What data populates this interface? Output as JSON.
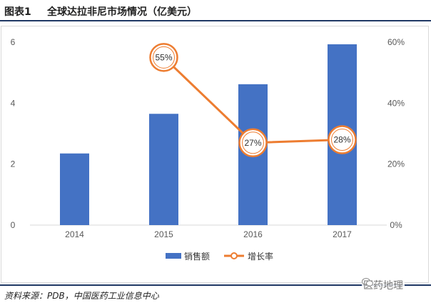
{
  "header": {
    "figure_number": "图表1",
    "title": "全球达拉非尼市场情况（亿美元）"
  },
  "footer": {
    "source": "资料来源：PDB，中国医药工业信息中心"
  },
  "watermark": {
    "text": "医药地理",
    "icon": "wechat-icon"
  },
  "colors": {
    "bar": "#4472c4",
    "line": "#ed7d31",
    "axis_text": "#595959",
    "gridline": "#e6e6e6",
    "header_rule": "#1f3864"
  },
  "chart_data": {
    "type": "bar",
    "categories": [
      "2014",
      "2015",
      "2016",
      "2017"
    ],
    "series": [
      {
        "name": "销售额",
        "kind": "bar",
        "axis": "left",
        "values": [
          2.35,
          3.65,
          4.62,
          5.93
        ],
        "labels": [
          "",
          "",
          "",
          ""
        ]
      },
      {
        "name": "增长率",
        "kind": "line",
        "axis": "right",
        "values": [
          null,
          0.55,
          0.27,
          0.28
        ],
        "labels": [
          "",
          "55%",
          "27%",
          "28%"
        ]
      }
    ],
    "y_left": {
      "min": 0,
      "max": 6,
      "ticks": [
        0,
        2,
        4,
        6
      ],
      "tick_labels": [
        "0",
        "2",
        "4",
        "6"
      ]
    },
    "y_right": {
      "min": 0,
      "max": 0.6,
      "ticks": [
        0,
        0.2,
        0.4,
        0.6
      ],
      "tick_labels": [
        "0%",
        "20%",
        "40%",
        "60%"
      ]
    },
    "legend_position": "bottom",
    "grid": false
  }
}
